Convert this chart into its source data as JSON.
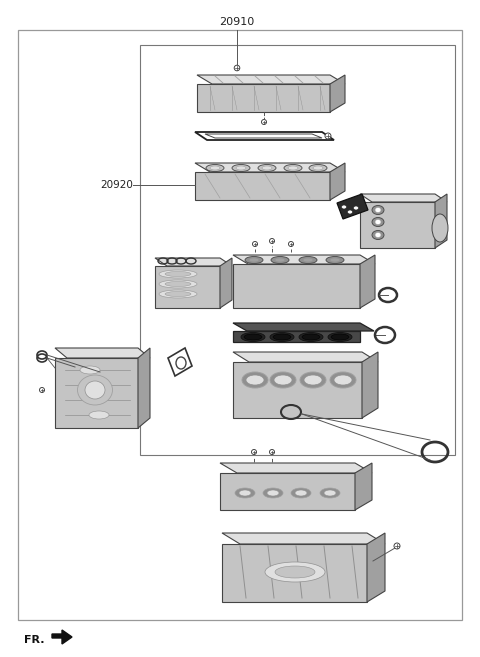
{
  "fig_width": 4.8,
  "fig_height": 6.57,
  "dpi": 100,
  "bg_color": "#ffffff",
  "label_20910": "20910",
  "label_20920": "20920",
  "label_fr": "FR.",
  "title_fontsize": 8,
  "label_fontsize": 7.5,
  "fr_fontsize": 8,
  "part_light": "#e0e0e0",
  "part_mid": "#c4c4c4",
  "part_dark": "#a0a0a0",
  "part_shadow": "#909090",
  "edge_color": "#444444",
  "gasket_dark": "#383838",
  "line_col": "#555555"
}
